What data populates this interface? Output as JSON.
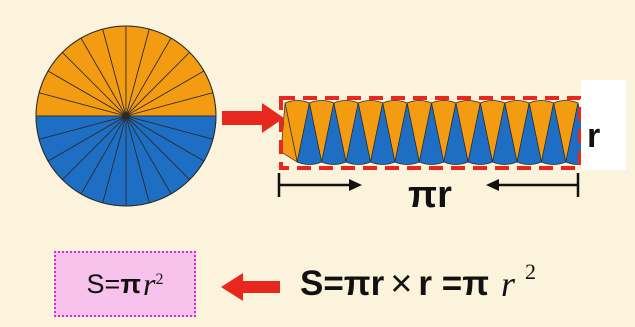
{
  "diagram": {
    "sector_count": 24,
    "colors": {
      "background": "#fbf3dc",
      "top_half": "#f39c12",
      "bottom_half": "#1e6fc4",
      "arrow": "#e8281e",
      "dashed_rect": "#e8281e",
      "formula_box": "#f7c3ec",
      "formula_border": "#cc33cc"
    },
    "labels": {
      "length": "πr",
      "height": "r"
    },
    "formula_box": {
      "prefix": "S=",
      "pi": "π",
      "var": "r",
      "exp": "2"
    },
    "derivation": {
      "part1": "S=πr",
      "times": "×",
      "part2": "r =π",
      "var": "r",
      "exp": "2"
    }
  }
}
